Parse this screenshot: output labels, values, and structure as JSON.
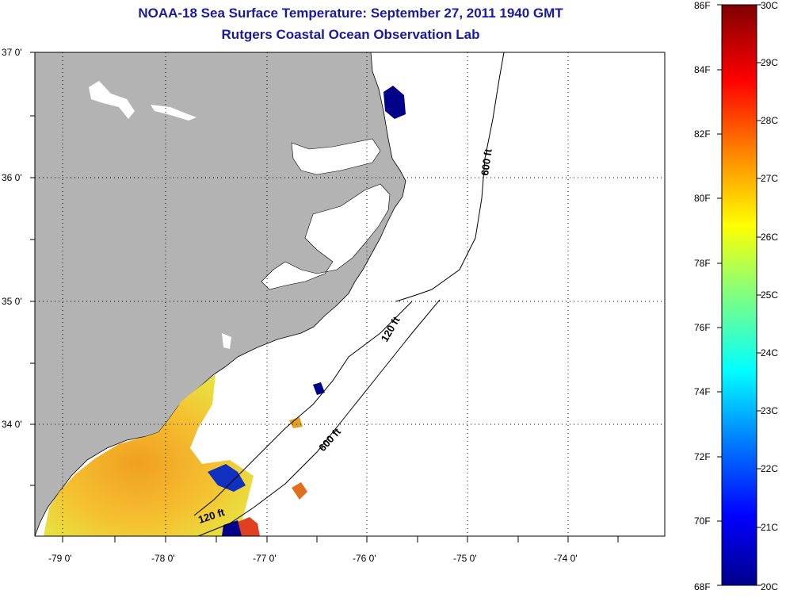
{
  "title": "NOAA-18 Sea Surface Temperature:  September 27, 2011 1940 GMT",
  "subtitle": "Rutgers Coastal Ocean Observation Lab",
  "map": {
    "lat_labels": [
      "37 0'",
      "36 0'",
      "35 0'",
      "34 0'"
    ],
    "lon_labels": [
      "-79 0'",
      "-78 0'",
      "-77 0'",
      "-76 0'",
      "-75 0'",
      "-74 0'"
    ],
    "contours": [
      "600 ft",
      "120 ft",
      "600 ft",
      "120 ft"
    ],
    "colors": {
      "land": "#b3b3b3",
      "ocean": "#ffffff",
      "coast": "#000000"
    }
  },
  "colorbar": {
    "fahrenheit_labels": [
      "86F",
      "84F",
      "82F",
      "80F",
      "78F",
      "76F",
      "74F",
      "72F",
      "70F",
      "68F"
    ],
    "celsius_labels": [
      "30C",
      "29C",
      "28C",
      "27C",
      "26C",
      "25C",
      "24C",
      "23C",
      "22C",
      "21C",
      "20C"
    ],
    "range_celsius": [
      20,
      30
    ],
    "colors": [
      "#00008b",
      "#0000ff",
      "#0080ff",
      "#00ffff",
      "#80ff80",
      "#ffff00",
      "#ff8000",
      "#ff0000",
      "#800000"
    ]
  }
}
